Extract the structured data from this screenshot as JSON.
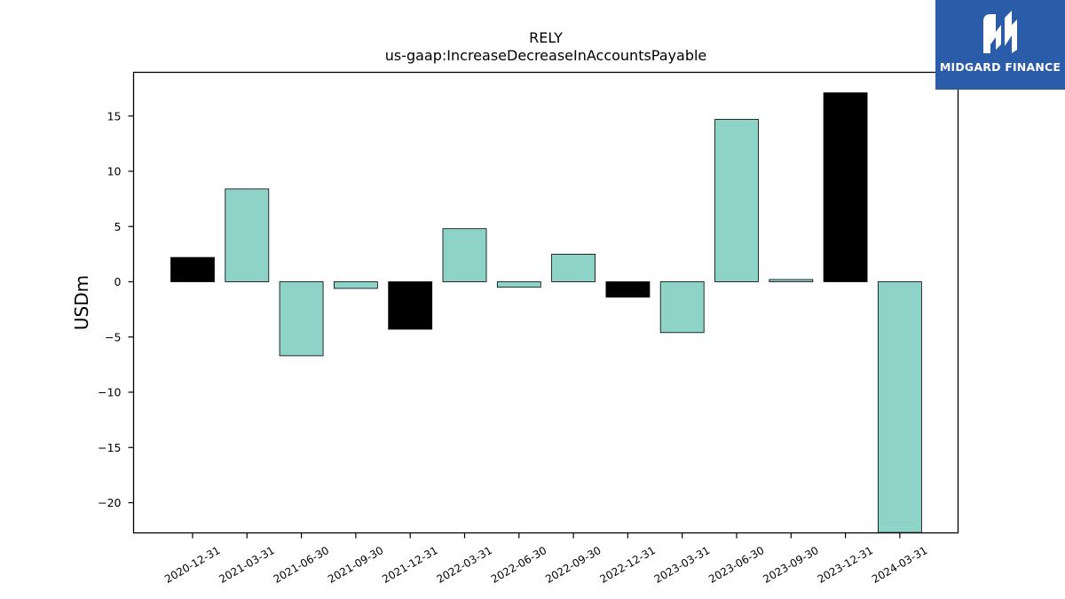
{
  "chart_data": {
    "type": "bar",
    "title": "RELY",
    "subtitle": "us-gaap:IncreaseDecreaseInAccountsPayable",
    "xlabel": "",
    "ylabel": "USDm",
    "ylim": [
      -22.7,
      18.9
    ],
    "yticks": [
      15,
      10,
      5,
      0,
      -5,
      -10,
      -15,
      -20
    ],
    "ytick_labels": [
      "15",
      "10",
      "5",
      "0",
      "−5",
      "−10",
      "−15",
      "−20"
    ],
    "grid": false,
    "categories": [
      "2020-12-31",
      "2021-03-31",
      "2021-06-30",
      "2021-09-30",
      "2021-12-31",
      "2022-03-31",
      "2022-06-30",
      "2022-09-30",
      "2022-12-31",
      "2023-03-31",
      "2023-06-30",
      "2023-09-30",
      "2023-12-31",
      "2024-03-31"
    ],
    "values": [
      2.2,
      8.4,
      -6.7,
      -0.6,
      -4.3,
      4.8,
      -0.5,
      2.5,
      -1.4,
      -4.6,
      14.7,
      0.2,
      17.1,
      -22.7
    ],
    "bar_colors": [
      "#000000",
      "#8dd3c7",
      "#8dd3c7",
      "#8dd3c7",
      "#000000",
      "#8dd3c7",
      "#8dd3c7",
      "#8dd3c7",
      "#000000",
      "#8dd3c7",
      "#8dd3c7",
      "#8dd3c7",
      "#000000",
      "#8dd3c7"
    ]
  },
  "logo": {
    "text": "MIDGARD FINANCE",
    "background": "#2a5caa"
  }
}
